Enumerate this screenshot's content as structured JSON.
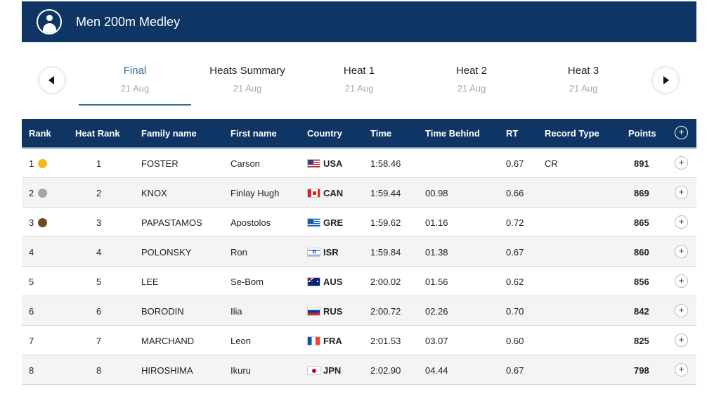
{
  "header": {
    "title": "Men 200m Medley",
    "icon": "user-icon"
  },
  "tabs": [
    {
      "label": "Final",
      "date": "21 Aug",
      "active": true
    },
    {
      "label": "Heats Summary",
      "date": "21 Aug",
      "active": false
    },
    {
      "label": "Heat 1",
      "date": "21 Aug",
      "active": false
    },
    {
      "label": "Heat 2",
      "date": "21 Aug",
      "active": false
    },
    {
      "label": "Heat 3",
      "date": "21 Aug",
      "active": false
    }
  ],
  "table": {
    "columns": [
      "Rank",
      "Heat Rank",
      "Family name",
      "First name",
      "Country",
      "Time",
      "Time Behind",
      "RT",
      "Record Type",
      "Points"
    ],
    "rows": [
      {
        "rank": "1",
        "medal": "#f5b91e",
        "heat_rank": "1",
        "family": "FOSTER",
        "first": "Carson",
        "country": "USA",
        "time": "1:58.46",
        "behind": "",
        "rt": "0.67",
        "record": "CR",
        "points": "891"
      },
      {
        "rank": "2",
        "medal": "#a6a6a6",
        "heat_rank": "2",
        "family": "KNOX",
        "first": "Finlay Hugh",
        "country": "CAN",
        "time": "1:59.44",
        "behind": "00.98",
        "rt": "0.66",
        "record": "",
        "points": "869"
      },
      {
        "rank": "3",
        "medal": "#6b4d1b",
        "heat_rank": "3",
        "family": "PAPASTAMOS",
        "first": "Apostolos",
        "country": "GRE",
        "time": "1:59.62",
        "behind": "01.16",
        "rt": "0.72",
        "record": "",
        "points": "865"
      },
      {
        "rank": "4",
        "medal": "",
        "heat_rank": "4",
        "family": "POLONSKY",
        "first": "Ron",
        "country": "ISR",
        "time": "1:59.84",
        "behind": "01.38",
        "rt": "0.67",
        "record": "",
        "points": "860"
      },
      {
        "rank": "5",
        "medal": "",
        "heat_rank": "5",
        "family": "LEE",
        "first": "Se-Bom",
        "country": "AUS",
        "time": "2:00.02",
        "behind": "01.56",
        "rt": "0.62",
        "record": "",
        "points": "856"
      },
      {
        "rank": "6",
        "medal": "",
        "heat_rank": "6",
        "family": "BORODIN",
        "first": "Ilia",
        "country": "RUS",
        "time": "2:00.72",
        "behind": "02.26",
        "rt": "0.70",
        "record": "",
        "points": "842"
      },
      {
        "rank": "7",
        "medal": "",
        "heat_rank": "7",
        "family": "MARCHAND",
        "first": "Leon",
        "country": "FRA",
        "time": "2:01.53",
        "behind": "03.07",
        "rt": "0.60",
        "record": "",
        "points": "825"
      },
      {
        "rank": "8",
        "medal": "",
        "heat_rank": "8",
        "family": "HIROSHIMA",
        "first": "Ikuru",
        "country": "JPN",
        "time": "2:02.90",
        "behind": "04.44",
        "rt": "0.67",
        "record": "",
        "points": "798"
      }
    ]
  },
  "colors": {
    "header_bg": "#0e3564",
    "active_tab": "#2b6ea0",
    "gold": "#f5b91e",
    "silver": "#a6a6a6",
    "bronze": "#6b4d1b"
  }
}
